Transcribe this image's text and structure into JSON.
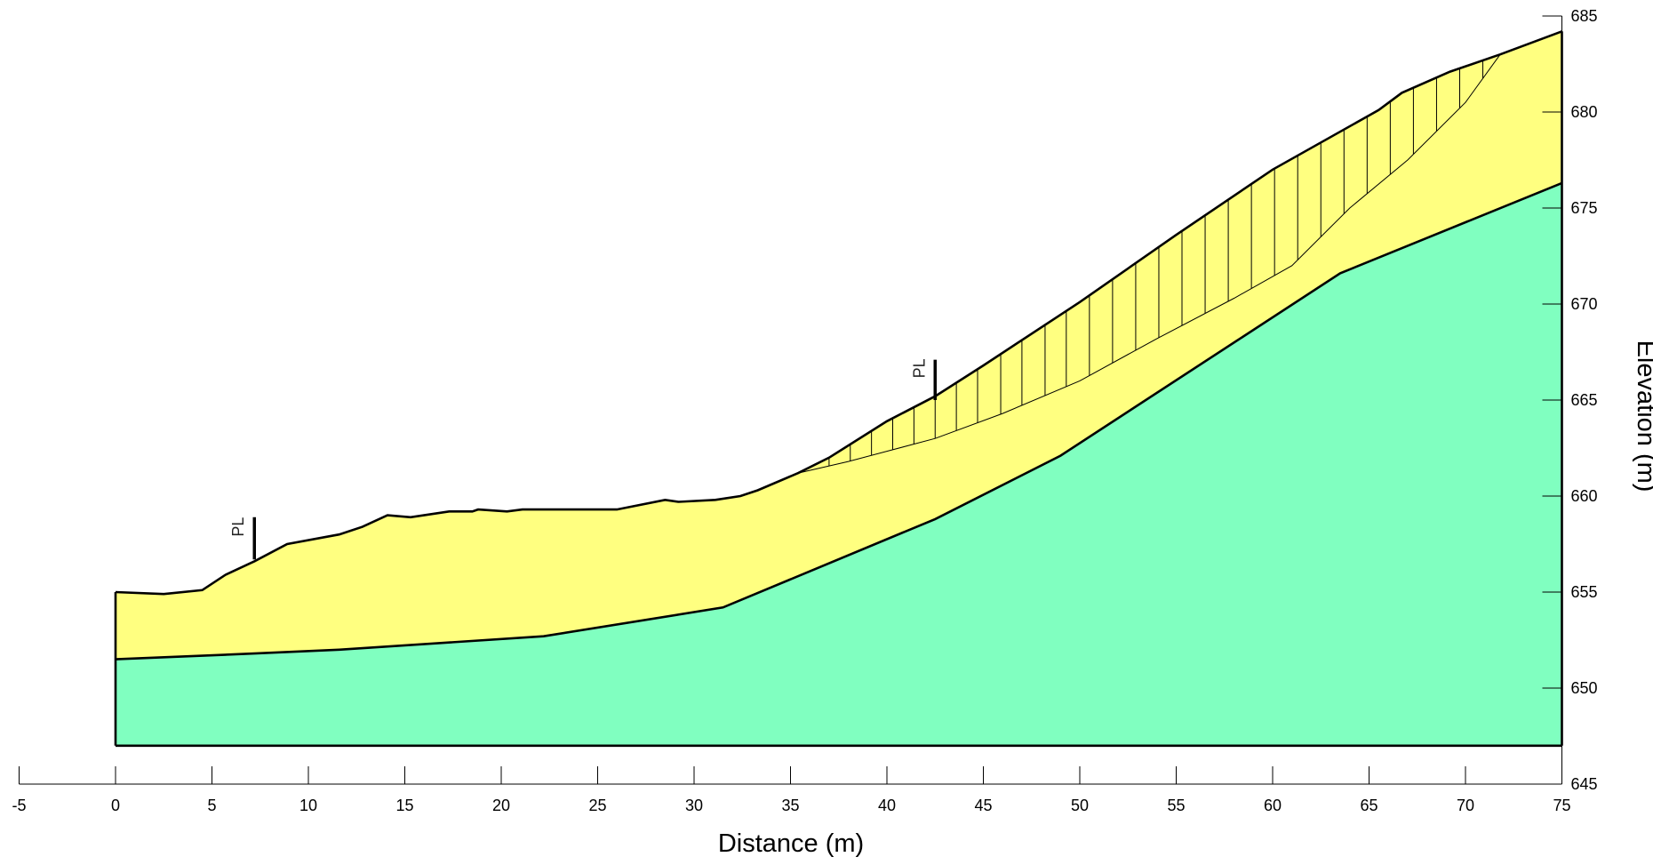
{
  "chart_data": {
    "type": "diagram",
    "xlabel": "Distance (m)",
    "ylabel": "Elevation (m)",
    "xlim": [
      -5,
      75
    ],
    "ylim": [
      645,
      685
    ],
    "x_ticks": [
      -5,
      0,
      5,
      10,
      15,
      20,
      25,
      30,
      35,
      40,
      45,
      50,
      55,
      60,
      65,
      70,
      75
    ],
    "y_ticks": [
      645,
      650,
      655,
      660,
      665,
      670,
      675,
      680,
      685
    ],
    "model_bottom": 647.0,
    "colors": {
      "upper_layer": "#ffff80",
      "bedrock": "#80ffc0",
      "outline": "#000000"
    },
    "ground_surface": [
      [
        0,
        655.0
      ],
      [
        2.5,
        654.9
      ],
      [
        4.5,
        655.1
      ],
      [
        5.7,
        655.9
      ],
      [
        7.2,
        656.6
      ],
      [
        8.9,
        657.5
      ],
      [
        11.6,
        658.0
      ],
      [
        12.8,
        658.4
      ],
      [
        14.1,
        659.0
      ],
      [
        15.3,
        658.9
      ],
      [
        17.3,
        659.2
      ],
      [
        18.5,
        659.2
      ],
      [
        18.8,
        659.3
      ],
      [
        20.3,
        659.2
      ],
      [
        21.1,
        659.3
      ],
      [
        22.5,
        659.3
      ],
      [
        26.0,
        659.3
      ],
      [
        28.5,
        659.8
      ],
      [
        29.2,
        659.7
      ],
      [
        31.1,
        659.8
      ],
      [
        32.4,
        660.0
      ],
      [
        33.3,
        660.3
      ],
      [
        35.4,
        661.2
      ],
      [
        37.0,
        662.0
      ],
      [
        40.0,
        663.9
      ],
      [
        42.5,
        665.2
      ],
      [
        45.0,
        666.8
      ],
      [
        50.0,
        670.1
      ],
      [
        55.0,
        673.6
      ],
      [
        60.0,
        677.0
      ],
      [
        65.5,
        680.1
      ],
      [
        66.7,
        681.0
      ],
      [
        69.2,
        682.1
      ],
      [
        71.8,
        683.0
      ],
      [
        75.0,
        684.2
      ]
    ],
    "layer_boundary": [
      [
        0,
        651.5
      ],
      [
        7.2,
        651.8
      ],
      [
        11.6,
        652.0
      ],
      [
        22.2,
        652.7
      ],
      [
        31.5,
        654.2
      ],
      [
        42.5,
        658.8
      ],
      [
        49.0,
        662.1
      ],
      [
        63.5,
        671.6
      ],
      [
        75.0,
        676.3
      ]
    ],
    "slip_surface": [
      [
        35.4,
        661.2
      ],
      [
        38.0,
        661.8
      ],
      [
        42.5,
        663.0
      ],
      [
        46.0,
        664.3
      ],
      [
        50.0,
        666.0
      ],
      [
        54.0,
        668.2
      ],
      [
        58.0,
        670.3
      ],
      [
        61.0,
        672.0
      ],
      [
        64.0,
        675.0
      ],
      [
        67.0,
        677.5
      ],
      [
        70.0,
        680.5
      ],
      [
        71.8,
        683.0
      ]
    ],
    "slice_lines_x": [
      37.0,
      38.1,
      39.2,
      40.3,
      41.4,
      42.5,
      43.6,
      44.7,
      45.9,
      47.0,
      48.2,
      49.3,
      50.5,
      51.7,
      52.9,
      54.1,
      55.3,
      56.5,
      57.7,
      58.9,
      60.1,
      61.3,
      62.5,
      63.7,
      64.9,
      66.1,
      67.3,
      68.5,
      69.7,
      70.9
    ],
    "annotations": [
      {
        "label": "PL",
        "x": 7.2,
        "y_from": 656.7,
        "y_to": 658.9
      },
      {
        "label": "PL",
        "x": 42.5,
        "y_from": 665.0,
        "y_to": 667.1
      }
    ]
  }
}
